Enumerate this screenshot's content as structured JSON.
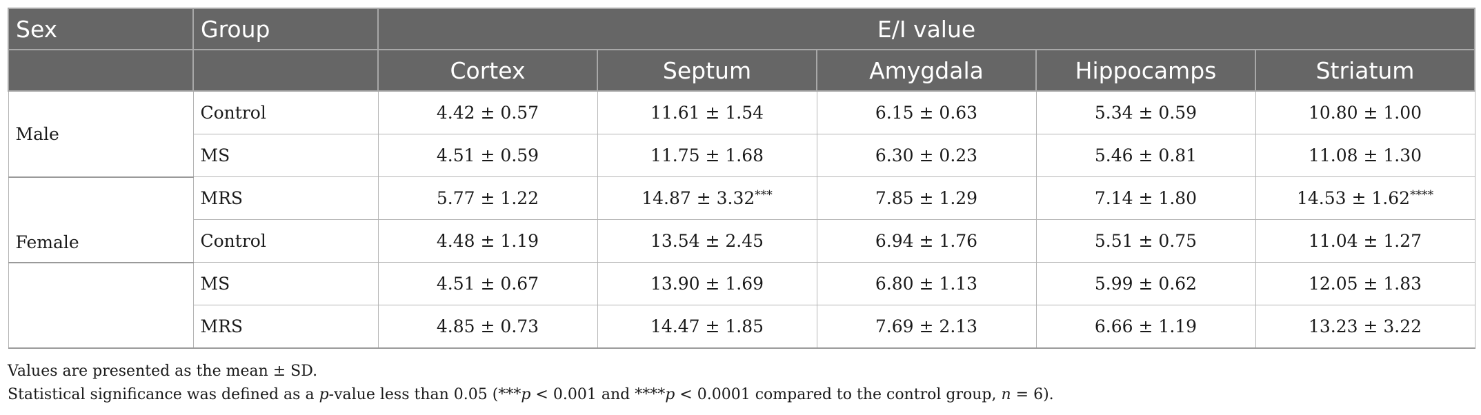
{
  "table": {
    "header": {
      "sex": "Sex",
      "group": "Group",
      "ei_value": "E/I value",
      "regions": [
        "Cortex",
        "Septum",
        "Amygdala",
        "Hippocamps",
        "Striatum"
      ]
    },
    "rows": [
      {
        "group": "Control",
        "values": [
          "4.42 ± 0.57",
          "11.61 ± 1.54",
          "6.15 ± 0.63",
          "5.34 ± 0.59",
          "10.80 ± 1.00"
        ],
        "sig": [
          "",
          "",
          "",
          "",
          ""
        ]
      },
      {
        "group": "MS",
        "values": [
          "4.51 ± 0.59",
          "11.75 ± 1.68",
          "6.30 ± 0.23",
          "5.46 ± 0.81",
          "11.08 ± 1.30"
        ],
        "sig": [
          "",
          "",
          "",
          "",
          ""
        ]
      },
      {
        "group": "MRS",
        "values": [
          "5.77 ± 1.22",
          "14.87 ± 3.32",
          "7.85 ± 1.29",
          "7.14 ± 1.80",
          "14.53 ± 1.62"
        ],
        "sig": [
          "",
          "***",
          "",
          "",
          "****"
        ]
      },
      {
        "group": "Control",
        "values": [
          "4.48 ± 1.19",
          "13.54 ± 2.45",
          "6.94 ± 1.76",
          "5.51 ± 0.75",
          "11.04 ± 1.27"
        ],
        "sig": [
          "",
          "",
          "",
          "",
          ""
        ]
      },
      {
        "group": "MS",
        "values": [
          "4.51 ± 0.67",
          "13.90 ± 1.69",
          "6.80 ± 1.13",
          "5.99 ± 0.62",
          "12.05 ± 1.83"
        ],
        "sig": [
          "",
          "",
          "",
          "",
          ""
        ]
      },
      {
        "group": "MRS",
        "values": [
          "4.85 ± 0.73",
          "14.47 ± 1.85",
          "7.69 ± 2.13",
          "6.66 ± 1.19",
          "13.23 ± 3.22"
        ],
        "sig": [
          "",
          "",
          "",
          "",
          ""
        ]
      }
    ],
    "sex_labels": {
      "male": "Male",
      "female": "Female"
    }
  },
  "notes": {
    "line1": "Values are presented as the mean ± SD.",
    "line2_a": "Statistical significance was defined as a ",
    "line2_p1": "p",
    "line2_b": "-value less than 0.05 (***",
    "line2_p2": "p",
    "line2_c": " < 0.001 and ****",
    "line2_p3": "p",
    "line2_d": " < 0.0001 compared to the control group, ",
    "line2_n": "n",
    "line2_e": " = 6)."
  }
}
